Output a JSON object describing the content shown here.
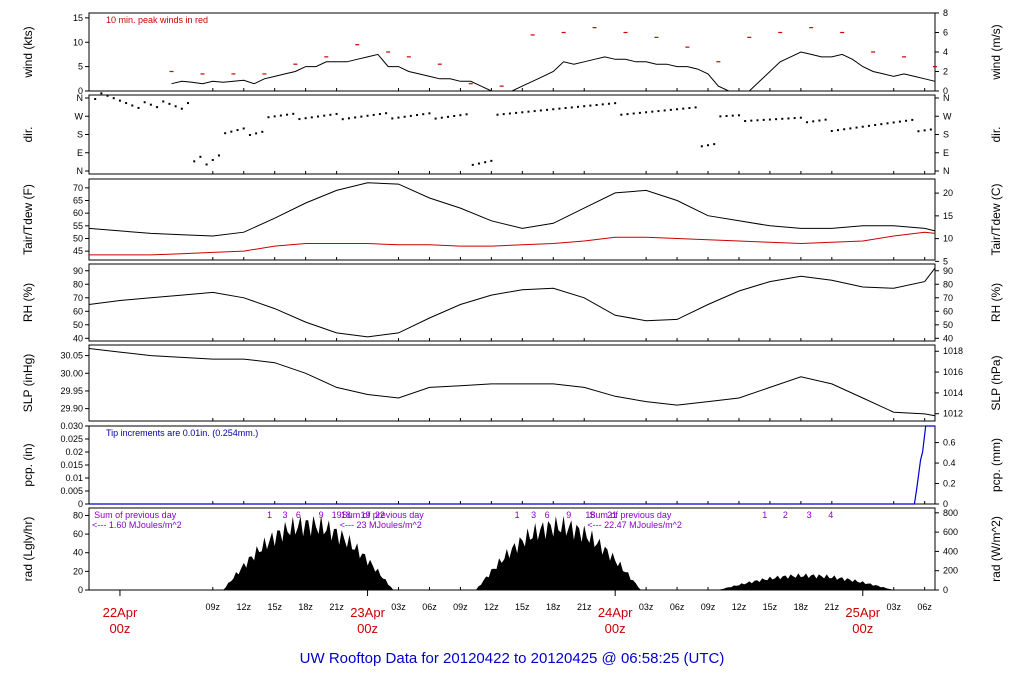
{
  "footer": {
    "title": "UW Rooftop Data for 20120422  to  20120425 @ 06:58:25  (UTC)"
  },
  "axis": {
    "hour_labels": [
      {
        "h": 9,
        "label": "09z"
      },
      {
        "h": 12,
        "label": "12z"
      },
      {
        "h": 15,
        "label": "15z"
      },
      {
        "h": 18,
        "label": "18z"
      },
      {
        "h": 21,
        "label": "21z"
      },
      {
        "h": 27,
        "label": "03z"
      },
      {
        "h": 30,
        "label": "06z"
      },
      {
        "h": 33,
        "label": "09z"
      },
      {
        "h": 36,
        "label": "12z"
      },
      {
        "h": 39,
        "label": "15z"
      },
      {
        "h": 42,
        "label": "18z"
      },
      {
        "h": 45,
        "label": "21z"
      },
      {
        "h": 51,
        "label": "03z"
      },
      {
        "h": 54,
        "label": "06z"
      },
      {
        "h": 57,
        "label": "09z"
      },
      {
        "h": 60,
        "label": "12z"
      },
      {
        "h": 63,
        "label": "15z"
      },
      {
        "h": 66,
        "label": "18z"
      },
      {
        "h": 69,
        "label": "21z"
      },
      {
        "h": 75,
        "label": "03z"
      },
      {
        "h": 78,
        "label": "06z"
      }
    ],
    "day_labels": [
      {
        "h": 0,
        "line1": "22Apr",
        "line2": "00z"
      },
      {
        "h": 24,
        "line1": "23Apr",
        "line2": "00z"
      },
      {
        "h": 48,
        "line1": "24Apr",
        "line2": "00z"
      },
      {
        "h": 72,
        "line1": "25Apr",
        "line2": "00z"
      }
    ]
  },
  "panels": [
    {
      "id": "wind",
      "ylabel_left": "wind (kts)",
      "ylabel_right": "wind (m/s)",
      "left_ticks": [
        "0",
        "5",
        "10",
        "15"
      ],
      "left_range": [
        0,
        16
      ],
      "right_ticks": [
        "0",
        "2",
        "4",
        "6",
        "8"
      ],
      "right_range": [
        0,
        8
      ],
      "note": "10 min. peak winds in red"
    },
    {
      "id": "dir",
      "ylabel_left": "dir.",
      "ylabel_right": "dir.",
      "left_ticks": [
        "N",
        "E",
        "S",
        "W",
        "N"
      ],
      "right_ticks": [
        "N",
        "E",
        "S",
        "W",
        "N"
      ],
      "left_range": [
        0,
        360
      ]
    },
    {
      "id": "temp",
      "ylabel_left": "Tair/Tdew (F)",
      "ylabel_right": "Tair/Tdew (C)",
      "left_ticks": [
        "45",
        "50",
        "55",
        "60",
        "65",
        "70"
      ],
      "left_range": [
        41.5,
        73.5
      ],
      "right_ticks": [
        "5",
        "10",
        "15",
        "20"
      ],
      "right_range": [
        5.3,
        23.1
      ]
    },
    {
      "id": "rh",
      "ylabel_left": "RH (%)",
      "ylabel_right": "RH (%)",
      "left_ticks": [
        "40",
        "50",
        "60",
        "70",
        "80",
        "90"
      ],
      "left_range": [
        38,
        95
      ],
      "right_ticks": [
        "40",
        "50",
        "60",
        "70",
        "80",
        "90"
      ],
      "right_range": [
        38,
        95
      ]
    },
    {
      "id": "slp",
      "ylabel_left": "SLP (inHg)",
      "ylabel_right": "SLP (hPa)",
      "left_ticks": [
        "29.90",
        "29.95",
        "30.00",
        "30.05"
      ],
      "left_range": [
        29.865,
        30.08
      ],
      "right_ticks": [
        "1012",
        "1014",
        "1016",
        "1018"
      ],
      "right_range": [
        1011.3,
        1018.6
      ]
    },
    {
      "id": "pcp",
      "ylabel_left": "pcp. (in)",
      "ylabel_right": "pcp. (mm)",
      "left_ticks": [
        "0",
        "0.005",
        "0.01",
        "0.015",
        "0.02",
        "0.025",
        "0.030"
      ],
      "left_range": [
        0,
        0.03
      ],
      "right_ticks": [
        "0",
        "0.2",
        "0.4",
        "0.6"
      ],
      "right_range": [
        0,
        0.762
      ],
      "note": "Tip increments are 0.01in. (0.254mm.)"
    },
    {
      "id": "rad",
      "ylabel_left": "rad (Lgly/hr)",
      "ylabel_right": "rad (W/m^2)",
      "left_ticks": [
        "0",
        "20",
        "40",
        "60",
        "80"
      ],
      "left_range": [
        0,
        88
      ],
      "right_ticks": [
        "0",
        "200",
        "400",
        "600",
        "800"
      ],
      "right_range": [
        0,
        850
      ]
    }
  ],
  "rad_notes": [
    {
      "h": -2.5,
      "line1": "Sum of previous day",
      "line2": "<--- 1.60 MJoules/m^2"
    },
    {
      "h": 21.5,
      "line1": "Sum of previous day",
      "line2": "<--- 23 MJoules/m^2"
    },
    {
      "h": 45.5,
      "line1": "Sum of previous day",
      "line2": "<--- 22.47 MJoules/m^2"
    }
  ],
  "rad_hour_marks": [
    {
      "day_start": 0,
      "labels": [
        "1",
        "3",
        "6",
        "9",
        "19",
        "18",
        "19",
        "22"
      ],
      "hours": [
        14.5,
        16,
        17.3,
        19.5,
        21,
        21.9,
        23.8,
        25.2
      ]
    },
    {
      "day_start": 24,
      "labels": [
        "1",
        "3",
        "6",
        "9",
        "18",
        "21"
      ],
      "hours": [
        38.5,
        40.1,
        41.4,
        43.5,
        45.6,
        47.7
      ]
    },
    {
      "day_start": 48,
      "labels": [
        "1",
        "2",
        "3",
        "4"
      ],
      "hours": [
        62.5,
        64.5,
        66.8,
        68.9
      ]
    }
  ],
  "chart_data": {
    "type": "line",
    "x_unit": "hours since 2012-04-22 00z",
    "x_range": [
      -3,
      79
    ],
    "series": [
      {
        "name": "",
        "panel": "wind",
        "color": "#000000",
        "x": [
          5,
          6,
          7,
          8,
          9,
          10,
          11,
          12,
          13,
          14,
          15,
          16,
          17,
          18,
          19,
          20,
          21,
          22,
          23,
          24,
          25,
          26,
          27,
          28,
          29,
          30,
          31,
          32,
          33,
          34,
          35,
          36,
          37,
          38,
          39,
          40,
          41,
          42,
          43,
          44,
          45,
          46,
          47,
          48,
          49,
          50,
          51,
          52,
          53,
          54,
          55,
          56,
          57,
          58,
          59,
          60,
          61,
          62,
          63,
          64,
          65,
          66,
          67,
          68,
          69,
          70,
          71,
          72,
          73,
          74,
          75,
          76,
          77,
          78,
          79
        ],
        "y": [
          1.5,
          2,
          1.8,
          1.5,
          2,
          1.8,
          2,
          2.2,
          1.5,
          2.5,
          3,
          3.5,
          4,
          5,
          5,
          6,
          6,
          6,
          6.5,
          7,
          7.5,
          5,
          5,
          4,
          3.5,
          3,
          2.5,
          2.5,
          2,
          2,
          1,
          0,
          0,
          0,
          1,
          2,
          3,
          4,
          6,
          5.5,
          6,
          6.5,
          7,
          6.5,
          6.5,
          6,
          6,
          5.5,
          5.5,
          5,
          5,
          4.5,
          3.5,
          1,
          0,
          0,
          0,
          2,
          4,
          6,
          7,
          8,
          7.5,
          7,
          7,
          7.5,
          6.5,
          5,
          4,
          3.5,
          3,
          3.5,
          3,
          2.5,
          2
        ]
      },
      {
        "name": "",
        "panel": "wind",
        "color": "#cc0000",
        "x": [
          5,
          8,
          11,
          14,
          17,
          20,
          23,
          26,
          28,
          31,
          34,
          37,
          40,
          43,
          46,
          49,
          52,
          55,
          58,
          61,
          64,
          67,
          70,
          73,
          76,
          79
        ],
        "y": [
          4,
          3.5,
          3.5,
          3.5,
          5.5,
          7,
          9.5,
          8,
          7,
          5.5,
          1.5,
          1,
          11.5,
          12,
          13,
          12,
          11,
          9,
          6,
          11,
          12,
          13,
          12,
          8,
          7,
          5
        ]
      },
      {
        "name": "",
        "panel": "temp",
        "color": "#000000",
        "x": [
          -3,
          0,
          3,
          6,
          9,
          12,
          15,
          18,
          21,
          24,
          27,
          30,
          33,
          36,
          39,
          42,
          45,
          48,
          51,
          54,
          57,
          60,
          63,
          66,
          69,
          72,
          75,
          78,
          79
        ],
        "y": [
          54,
          53,
          52,
          51.5,
          51,
          52.5,
          58,
          64,
          69,
          72,
          71.5,
          66,
          62,
          57,
          54,
          56,
          62,
          68,
          69,
          65,
          59,
          57,
          55,
          54,
          54,
          55,
          55,
          54,
          53
        ]
      },
      {
        "name": "",
        "panel": "temp",
        "color": "#cc0000",
        "x": [
          -3,
          0,
          3,
          6,
          9,
          12,
          15,
          18,
          21,
          24,
          27,
          30,
          33,
          36,
          39,
          42,
          45,
          48,
          51,
          54,
          57,
          60,
          63,
          66,
          69,
          72,
          75,
          78,
          79
        ],
        "y": [
          43.5,
          43.5,
          43.5,
          44,
          44.5,
          45,
          47,
          48,
          48,
          48,
          47.5,
          47.5,
          47,
          47,
          47.5,
          48,
          49,
          50.5,
          50.5,
          50,
          49.5,
          49,
          48.5,
          48,
          48.5,
          49,
          51,
          52.5,
          52
        ]
      },
      {
        "name": "",
        "panel": "rh",
        "color": "#000000",
        "x": [
          -3,
          0,
          3,
          6,
          9,
          12,
          15,
          18,
          21,
          24,
          27,
          30,
          33,
          36,
          39,
          42,
          45,
          48,
          51,
          54,
          57,
          60,
          63,
          66,
          69,
          72,
          75,
          78,
          79
        ],
        "y": [
          65,
          68,
          70,
          72,
          74,
          70,
          62,
          52,
          44,
          41,
          44,
          55,
          65,
          72,
          76,
          77,
          70,
          57,
          53,
          54,
          65,
          75,
          82,
          86,
          83,
          78,
          77,
          82,
          92
        ]
      },
      {
        "name": "",
        "panel": "slp",
        "color": "#000000",
        "x": [
          -3,
          0,
          3,
          6,
          9,
          12,
          15,
          18,
          21,
          24,
          27,
          30,
          33,
          36,
          39,
          42,
          45,
          48,
          51,
          54,
          57,
          60,
          63,
          66,
          69,
          72,
          75,
          78,
          79
        ],
        "y": [
          30.07,
          30.06,
          30.05,
          30.045,
          30.04,
          30.04,
          30.03,
          30.0,
          29.96,
          29.94,
          29.93,
          29.96,
          29.965,
          29.97,
          29.97,
          29.97,
          29.96,
          29.935,
          29.92,
          29.91,
          29.92,
          29.93,
          29.96,
          29.99,
          29.97,
          29.93,
          29.89,
          29.885,
          29.88
        ]
      },
      {
        "name": "",
        "panel": "pcp",
        "color": "#0000cc",
        "x": [
          -3,
          77.0,
          77.2,
          77.6,
          77.8,
          78.1,
          79
        ],
        "y": [
          0,
          0,
          0.005,
          0.017,
          0.02,
          0.03,
          0.03
        ]
      }
    ]
  }
}
